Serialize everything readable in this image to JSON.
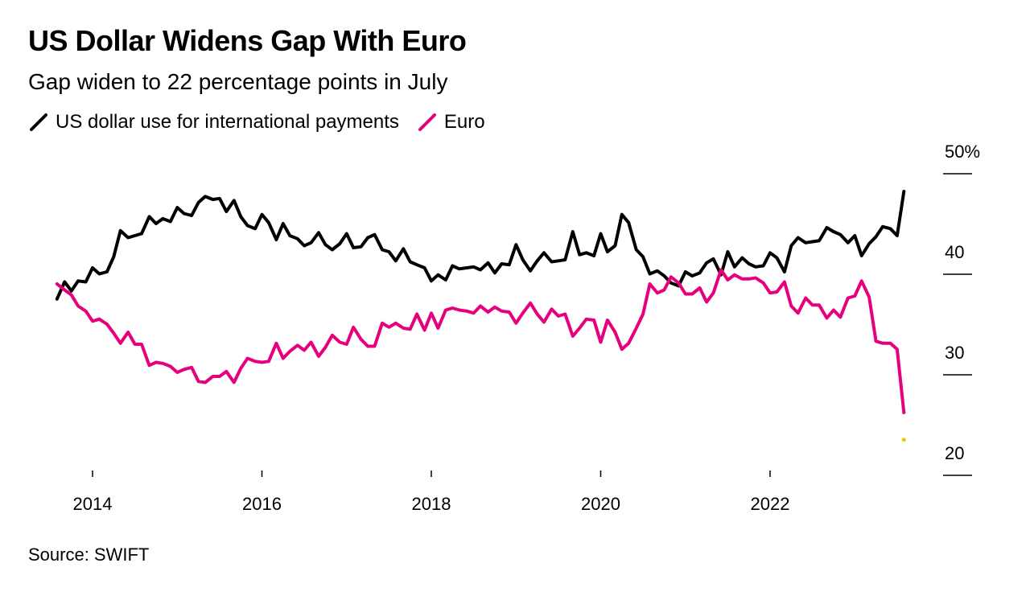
{
  "chart_data": {
    "type": "line",
    "title": "US Dollar Widens Gap With Euro",
    "subtitle": "Gap widen to 22 percentage points in July",
    "source": "Source: SWIFT",
    "xlabel": "",
    "ylabel": "",
    "ylim": [
      18,
      52
    ],
    "xlim": [
      2013.55,
      2023.92
    ],
    "grid": false,
    "legend_position": "top-left",
    "y_ticks": [
      {
        "value": 50,
        "label": "50%"
      },
      {
        "value": 40,
        "label": "40"
      },
      {
        "value": 30,
        "label": "30"
      },
      {
        "value": 20,
        "label": "20"
      }
    ],
    "x_ticks": [
      {
        "value": 2014,
        "label": "2014"
      },
      {
        "value": 2016,
        "label": "2016"
      },
      {
        "value": 2018,
        "label": "2018"
      },
      {
        "value": 2020,
        "label": "2020"
      },
      {
        "value": 2022,
        "label": "2022"
      }
    ],
    "series": [
      {
        "name": "US dollar use for international payments",
        "color": "#000000",
        "points": [
          [
            2013.58,
            35.3
          ],
          [
            2013.67,
            37.0
          ],
          [
            2013.75,
            36.1
          ],
          [
            2013.83,
            37.1
          ],
          [
            2013.92,
            37.0
          ],
          [
            2014.0,
            38.4
          ],
          [
            2014.08,
            37.8
          ],
          [
            2014.17,
            38.0
          ],
          [
            2014.25,
            39.5
          ],
          [
            2014.33,
            42.1
          ],
          [
            2014.42,
            41.4
          ],
          [
            2014.5,
            41.6
          ],
          [
            2014.58,
            41.8
          ],
          [
            2014.67,
            43.5
          ],
          [
            2014.75,
            42.8
          ],
          [
            2014.83,
            43.3
          ],
          [
            2014.92,
            43.0
          ],
          [
            2015.0,
            44.4
          ],
          [
            2015.08,
            43.8
          ],
          [
            2015.17,
            43.6
          ],
          [
            2015.25,
            44.9
          ],
          [
            2015.33,
            45.5
          ],
          [
            2015.42,
            45.2
          ],
          [
            2015.5,
            45.3
          ],
          [
            2015.58,
            44.0
          ],
          [
            2015.67,
            45.1
          ],
          [
            2015.75,
            43.5
          ],
          [
            2015.83,
            42.6
          ],
          [
            2015.92,
            42.3
          ],
          [
            2016.0,
            43.7
          ],
          [
            2016.08,
            42.9
          ],
          [
            2016.17,
            41.2
          ],
          [
            2016.25,
            42.8
          ],
          [
            2016.33,
            41.6
          ],
          [
            2016.42,
            41.3
          ],
          [
            2016.5,
            40.6
          ],
          [
            2016.58,
            40.9
          ],
          [
            2016.67,
            41.9
          ],
          [
            2016.75,
            40.7
          ],
          [
            2016.83,
            40.2
          ],
          [
            2016.92,
            40.8
          ],
          [
            2017.0,
            41.8
          ],
          [
            2017.08,
            40.4
          ],
          [
            2017.17,
            40.5
          ],
          [
            2017.25,
            41.4
          ],
          [
            2017.33,
            41.7
          ],
          [
            2017.42,
            40.2
          ],
          [
            2017.5,
            40.0
          ],
          [
            2017.58,
            39.1
          ],
          [
            2017.67,
            40.3
          ],
          [
            2017.75,
            39.0
          ],
          [
            2017.83,
            38.7
          ],
          [
            2017.92,
            38.4
          ],
          [
            2018.0,
            37.1
          ],
          [
            2018.08,
            37.7
          ],
          [
            2018.17,
            37.2
          ],
          [
            2018.25,
            38.6
          ],
          [
            2018.33,
            38.3
          ],
          [
            2018.42,
            38.4
          ],
          [
            2018.5,
            38.5
          ],
          [
            2018.58,
            38.2
          ],
          [
            2018.67,
            38.9
          ],
          [
            2018.75,
            37.9
          ],
          [
            2018.83,
            38.8
          ],
          [
            2018.92,
            38.7
          ],
          [
            2019.0,
            40.7
          ],
          [
            2019.08,
            39.2
          ],
          [
            2019.17,
            38.1
          ],
          [
            2019.25,
            39.1
          ],
          [
            2019.33,
            39.9
          ],
          [
            2019.42,
            39.0
          ],
          [
            2019.5,
            39.1
          ],
          [
            2019.58,
            39.2
          ],
          [
            2019.67,
            42.0
          ],
          [
            2019.75,
            39.7
          ],
          [
            2019.83,
            39.9
          ],
          [
            2019.92,
            39.6
          ],
          [
            2020.0,
            41.8
          ],
          [
            2020.08,
            40.0
          ],
          [
            2020.17,
            40.6
          ],
          [
            2020.25,
            43.7
          ],
          [
            2020.33,
            42.9
          ],
          [
            2020.42,
            40.2
          ],
          [
            2020.5,
            39.5
          ],
          [
            2020.58,
            37.8
          ],
          [
            2020.67,
            38.1
          ],
          [
            2020.75,
            37.6
          ],
          [
            2020.83,
            36.9
          ],
          [
            2020.92,
            36.6
          ],
          [
            2021.0,
            38.0
          ],
          [
            2021.08,
            37.6
          ],
          [
            2021.17,
            37.9
          ],
          [
            2021.25,
            38.9
          ],
          [
            2021.33,
            39.3
          ],
          [
            2021.42,
            37.7
          ],
          [
            2021.5,
            40.0
          ],
          [
            2021.58,
            38.5
          ],
          [
            2021.67,
            39.4
          ],
          [
            2021.75,
            38.8
          ],
          [
            2021.83,
            38.5
          ],
          [
            2021.92,
            38.6
          ],
          [
            2022.0,
            39.9
          ],
          [
            2022.08,
            39.4
          ],
          [
            2022.17,
            38.0
          ],
          [
            2022.25,
            40.6
          ],
          [
            2022.33,
            41.4
          ],
          [
            2022.42,
            40.9
          ],
          [
            2022.5,
            41.0
          ],
          [
            2022.58,
            41.1
          ],
          [
            2022.67,
            42.4
          ],
          [
            2022.75,
            42.0
          ],
          [
            2022.83,
            41.7
          ],
          [
            2022.92,
            40.9
          ],
          [
            2023.0,
            41.6
          ],
          [
            2023.08,
            39.6
          ],
          [
            2023.17,
            40.8
          ],
          [
            2023.25,
            41.5
          ],
          [
            2023.33,
            42.5
          ],
          [
            2023.42,
            42.3
          ],
          [
            2023.5,
            41.6
          ],
          [
            2023.58,
            46.0
          ]
        ]
      },
      {
        "name": "Euro",
        "color": "#e6007e",
        "points": [
          [
            2013.58,
            36.8
          ],
          [
            2013.67,
            36.2
          ],
          [
            2013.75,
            35.7
          ],
          [
            2013.83,
            34.6
          ],
          [
            2013.92,
            34.1
          ],
          [
            2014.0,
            33.1
          ],
          [
            2014.08,
            33.3
          ],
          [
            2014.17,
            32.8
          ],
          [
            2014.25,
            31.9
          ],
          [
            2014.33,
            30.9
          ],
          [
            2014.42,
            32.0
          ],
          [
            2014.5,
            30.8
          ],
          [
            2014.58,
            30.8
          ],
          [
            2014.67,
            28.7
          ],
          [
            2014.75,
            29.0
          ],
          [
            2014.83,
            28.9
          ],
          [
            2014.92,
            28.6
          ],
          [
            2015.0,
            28.0
          ],
          [
            2015.08,
            28.3
          ],
          [
            2015.17,
            28.5
          ],
          [
            2015.25,
            27.1
          ],
          [
            2015.33,
            27.0
          ],
          [
            2015.42,
            27.6
          ],
          [
            2015.5,
            27.6
          ],
          [
            2015.58,
            28.1
          ],
          [
            2015.67,
            27.0
          ],
          [
            2015.75,
            28.4
          ],
          [
            2015.83,
            29.4
          ],
          [
            2015.92,
            29.1
          ],
          [
            2016.0,
            29.0
          ],
          [
            2016.08,
            29.1
          ],
          [
            2016.17,
            30.9
          ],
          [
            2016.25,
            29.4
          ],
          [
            2016.33,
            30.1
          ],
          [
            2016.42,
            30.7
          ],
          [
            2016.5,
            30.2
          ],
          [
            2016.58,
            31.0
          ],
          [
            2016.67,
            29.6
          ],
          [
            2016.75,
            30.5
          ],
          [
            2016.83,
            31.7
          ],
          [
            2016.92,
            31.0
          ],
          [
            2017.0,
            30.8
          ],
          [
            2017.08,
            32.5
          ],
          [
            2017.17,
            31.3
          ],
          [
            2017.25,
            30.6
          ],
          [
            2017.33,
            30.6
          ],
          [
            2017.42,
            32.9
          ],
          [
            2017.5,
            32.5
          ],
          [
            2017.58,
            32.9
          ],
          [
            2017.67,
            32.4
          ],
          [
            2017.75,
            32.3
          ],
          [
            2017.83,
            33.8
          ],
          [
            2017.92,
            32.2
          ],
          [
            2018.0,
            33.9
          ],
          [
            2018.08,
            32.4
          ],
          [
            2018.17,
            34.2
          ],
          [
            2018.25,
            34.4
          ],
          [
            2018.33,
            34.2
          ],
          [
            2018.42,
            34.1
          ],
          [
            2018.5,
            33.9
          ],
          [
            2018.58,
            34.6
          ],
          [
            2018.67,
            34.0
          ],
          [
            2018.75,
            34.5
          ],
          [
            2018.83,
            34.1
          ],
          [
            2018.92,
            34.0
          ],
          [
            2019.0,
            32.9
          ],
          [
            2019.08,
            33.9
          ],
          [
            2019.17,
            34.9
          ],
          [
            2019.25,
            33.8
          ],
          [
            2019.33,
            33.0
          ],
          [
            2019.42,
            34.3
          ],
          [
            2019.5,
            33.6
          ],
          [
            2019.58,
            33.8
          ],
          [
            2019.67,
            31.6
          ],
          [
            2019.75,
            32.4
          ],
          [
            2019.83,
            33.3
          ],
          [
            2019.92,
            33.2
          ],
          [
            2020.0,
            31.0
          ],
          [
            2020.08,
            33.2
          ],
          [
            2020.17,
            32.0
          ],
          [
            2020.25,
            30.3
          ],
          [
            2020.33,
            30.9
          ],
          [
            2020.42,
            32.4
          ],
          [
            2020.5,
            33.8
          ],
          [
            2020.58,
            36.8
          ],
          [
            2020.67,
            35.9
          ],
          [
            2020.75,
            36.2
          ],
          [
            2020.83,
            37.5
          ],
          [
            2020.92,
            36.9
          ],
          [
            2021.0,
            35.8
          ],
          [
            2021.08,
            35.8
          ],
          [
            2021.17,
            36.4
          ],
          [
            2021.25,
            35.0
          ],
          [
            2021.33,
            35.9
          ],
          [
            2021.42,
            38.2
          ],
          [
            2021.5,
            37.2
          ],
          [
            2021.58,
            37.7
          ],
          [
            2021.67,
            37.3
          ],
          [
            2021.75,
            37.3
          ],
          [
            2021.83,
            37.4
          ],
          [
            2021.92,
            36.9
          ],
          [
            2022.0,
            35.9
          ],
          [
            2022.08,
            36.0
          ],
          [
            2022.17,
            37.0
          ],
          [
            2022.25,
            34.6
          ],
          [
            2022.33,
            33.9
          ],
          [
            2022.42,
            35.4
          ],
          [
            2022.5,
            34.7
          ],
          [
            2022.58,
            34.7
          ],
          [
            2022.67,
            33.4
          ],
          [
            2022.75,
            34.2
          ],
          [
            2022.83,
            33.5
          ],
          [
            2022.92,
            35.4
          ],
          [
            2023.0,
            35.6
          ],
          [
            2023.08,
            37.1
          ],
          [
            2023.17,
            35.5
          ],
          [
            2023.25,
            31.1
          ],
          [
            2023.33,
            30.9
          ],
          [
            2023.42,
            30.9
          ],
          [
            2023.5,
            30.3
          ],
          [
            2023.58,
            24.0
          ]
        ]
      }
    ],
    "annotations": [
      {
        "type": "dot",
        "x": 2023.58,
        "y": 21.3,
        "color": "#f5c400"
      }
    ]
  }
}
